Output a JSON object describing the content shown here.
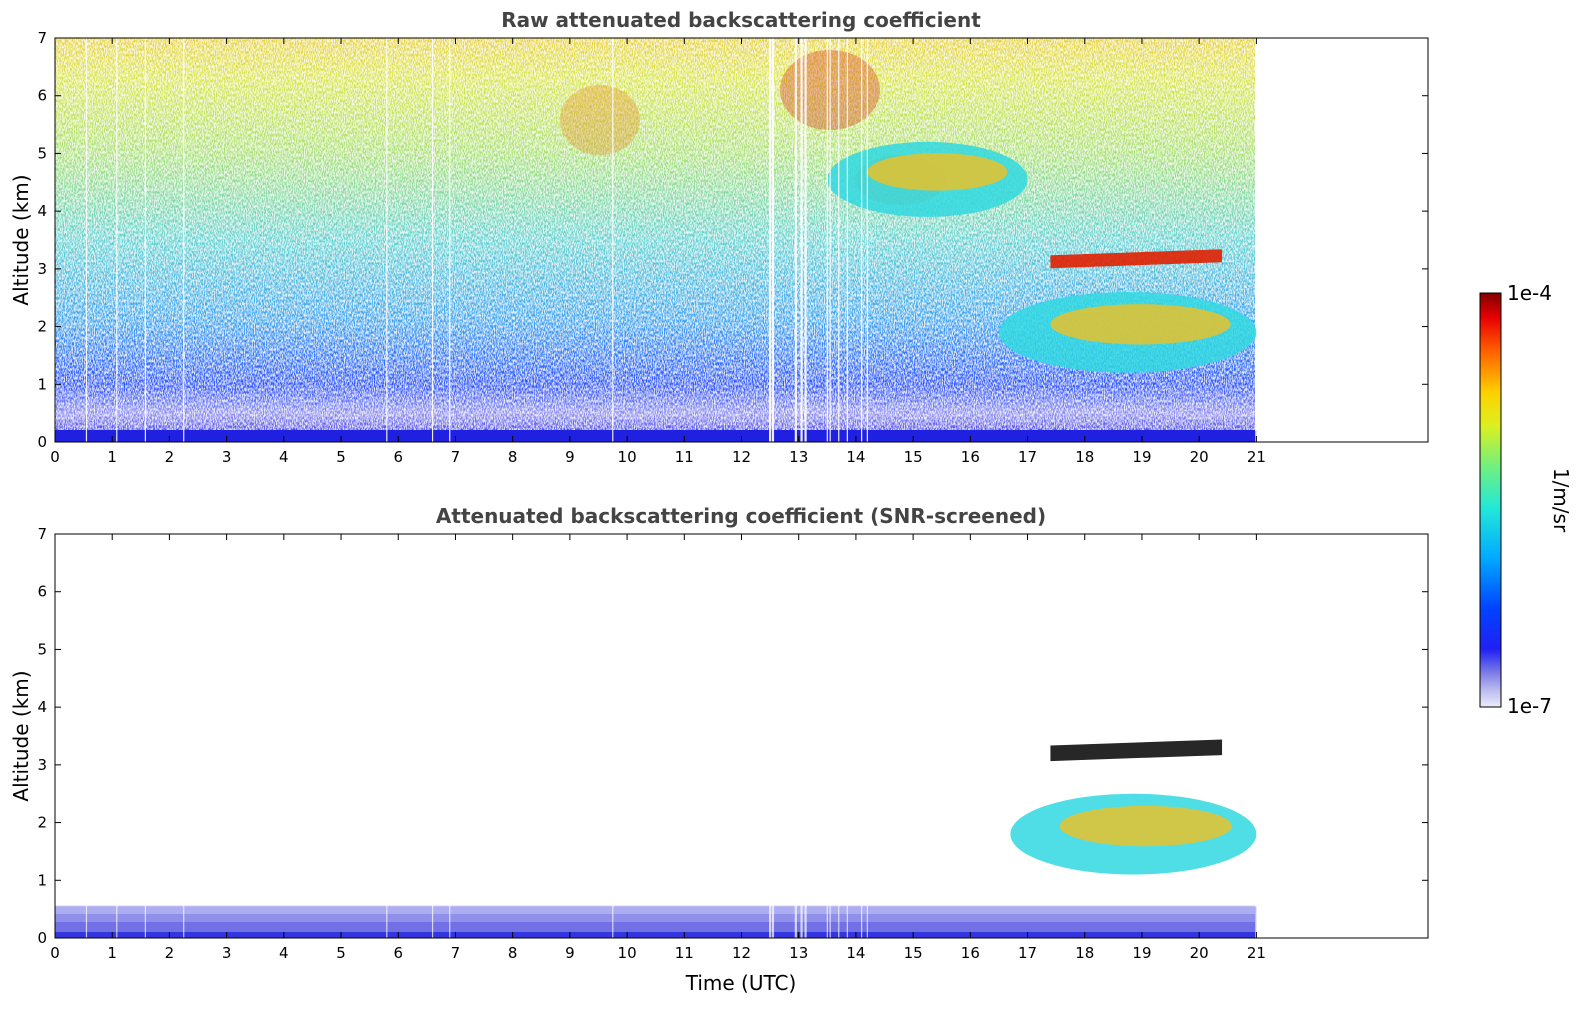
{
  "figure": {
    "colorbar": {
      "label": "1/m/sr",
      "max_label": "1e-4",
      "min_label": "1e-7",
      "colormap": "jet",
      "low_end_colors": [
        "#e8e8fa",
        "#c8c8f4",
        "#a6a6ee",
        "#8484e8",
        "#6060e6",
        "#3a3af0"
      ],
      "scale": "log"
    }
  },
  "chart_data": [
    {
      "type": "heatmap",
      "title": "Raw attenuated backscattering coefficient",
      "xlabel": "",
      "ylabel": "Altitude (km)",
      "xlim": [
        0,
        24
      ],
      "ylim": [
        0,
        7
      ],
      "x_data_range": [
        0,
        21
      ],
      "xticks": [
        0,
        1,
        2,
        3,
        4,
        5,
        6,
        7,
        8,
        9,
        10,
        11,
        12,
        13,
        14,
        15,
        16,
        17,
        18,
        19,
        20,
        21
      ],
      "yticks": [
        0,
        1,
        2,
        3,
        4,
        5,
        6,
        7
      ],
      "features": [
        {
          "label": "near-surface layer",
          "x": [
            0,
            21
          ],
          "y": [
            0,
            0.2
          ],
          "level": "low"
        },
        {
          "label": "aerosol layer",
          "x": [
            16.5,
            21
          ],
          "y": [
            1.2,
            2.6
          ],
          "level": "medium-high"
        },
        {
          "label": "cloud top",
          "x": [
            17.4,
            20.4
          ],
          "y": [
            2.1,
            2.6
          ],
          "level": "high"
        },
        {
          "label": "elevated layer",
          "x": [
            13.5,
            17
          ],
          "y": [
            3.9,
            5.2
          ],
          "level": "medium-high"
        }
      ]
    },
    {
      "type": "heatmap",
      "title": "Attenuated backscattering coefficient (SNR-screened)",
      "xlabel": "Time (UTC)",
      "ylabel": "Altitude (km)",
      "xlim": [
        0,
        24
      ],
      "ylim": [
        0,
        7
      ],
      "x_data_range": [
        0,
        21
      ],
      "xticks": [
        0,
        1,
        2,
        3,
        4,
        5,
        6,
        7,
        8,
        9,
        10,
        11,
        12,
        13,
        14,
        15,
        16,
        17,
        18,
        19,
        20,
        21
      ],
      "yticks": [
        0,
        1,
        2,
        3,
        4,
        5,
        6,
        7
      ],
      "features": [
        {
          "label": "boundary layer",
          "x": [
            0,
            21
          ],
          "y": [
            0,
            0.55
          ],
          "level": "low"
        },
        {
          "label": "aerosol layer",
          "x": [
            16.7,
            21
          ],
          "y": [
            1.1,
            2.5
          ],
          "level": "medium-high"
        },
        {
          "label": "cloud top",
          "x": [
            17.4,
            20.4
          ],
          "y": [
            2.1,
            2.7
          ],
          "level": "saturated"
        }
      ]
    }
  ]
}
